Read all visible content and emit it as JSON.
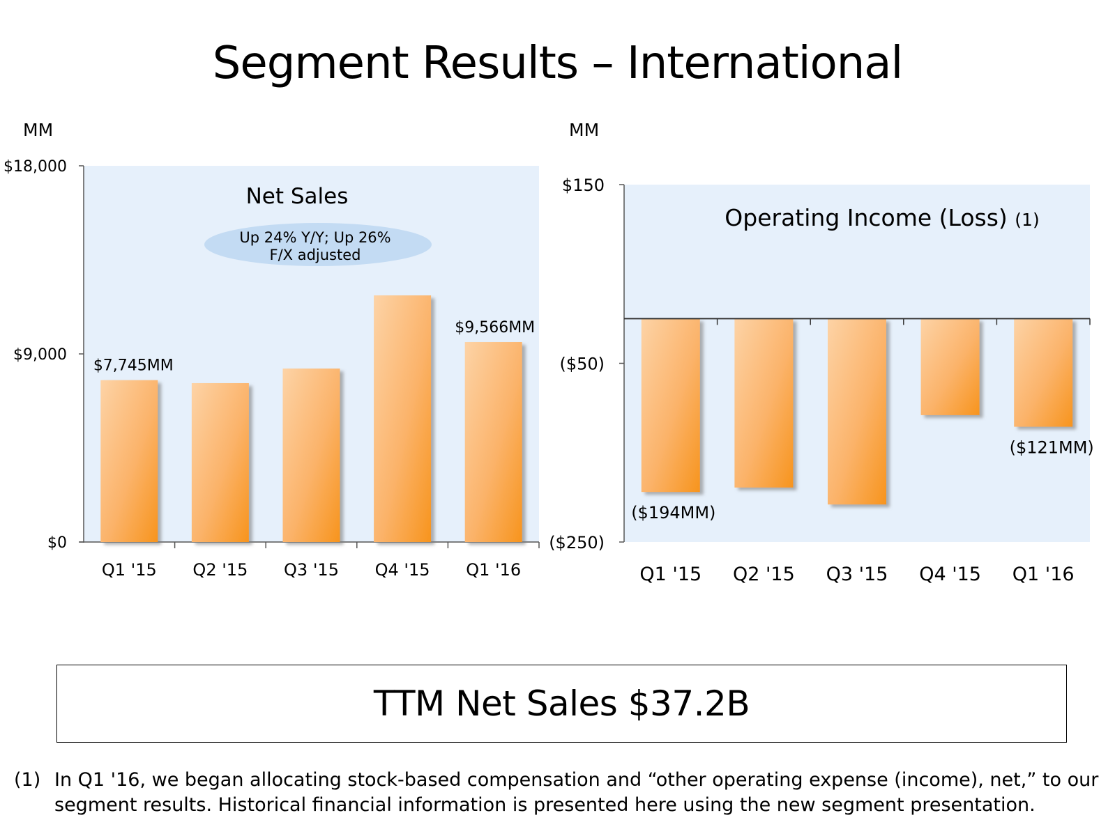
{
  "page": {
    "title": "Segment Results – International"
  },
  "left_unit": "MM",
  "right_unit": "MM",
  "chart_data": [
    {
      "type": "bar",
      "title": "Net Sales",
      "annotation": "Up 24% Y/Y; Up 26% F/X adjusted",
      "annotation_lines": [
        "Up 24% Y/Y; Up 26%",
        "F/X adjusted"
      ],
      "unit": "MM",
      "categories": [
        "Q1 '15",
        "Q2 '15",
        "Q3 '15",
        "Q4 '15",
        "Q1 '16"
      ],
      "values": [
        7745,
        7600,
        8300,
        11800,
        9566
      ],
      "data_labels": [
        "$7,745MM",
        "",
        "",
        "",
        "$9,566MM"
      ],
      "ylim": [
        0,
        18000
      ],
      "yticks": [
        0,
        9000,
        18000
      ],
      "ytick_labels": [
        "$0",
        "$9,000",
        "$18,000"
      ],
      "bar_color": "#f7941d",
      "plot_background": "#e6f0fb"
    },
    {
      "type": "bar",
      "title": "Operating Income (Loss)",
      "title_superscript": "(1)",
      "unit": "MM",
      "categories": [
        "Q1 '15",
        "Q2 '15",
        "Q3 '15",
        "Q4 '15",
        "Q1 '16"
      ],
      "values": [
        -194,
        -189,
        -208,
        -108,
        -121
      ],
      "data_labels": [
        "($194MM)",
        "",
        "",
        "",
        "($121MM)"
      ],
      "ylim": [
        -250,
        150
      ],
      "yticks": [
        -250,
        -50,
        150
      ],
      "ytick_labels": [
        "($250)",
        "($50)",
        "$150"
      ],
      "bar_color": "#f7941d",
      "plot_background": "#e6f0fb"
    }
  ],
  "summary": {
    "ttm": "TTM Net Sales $37.2B"
  },
  "footnote": {
    "marker": "(1)",
    "text": "In Q1 '16, we began allocating stock-based compensation and “other operating expense (income), net,” to our segment results. Historical financial information is presented here using the new segment presentation."
  }
}
